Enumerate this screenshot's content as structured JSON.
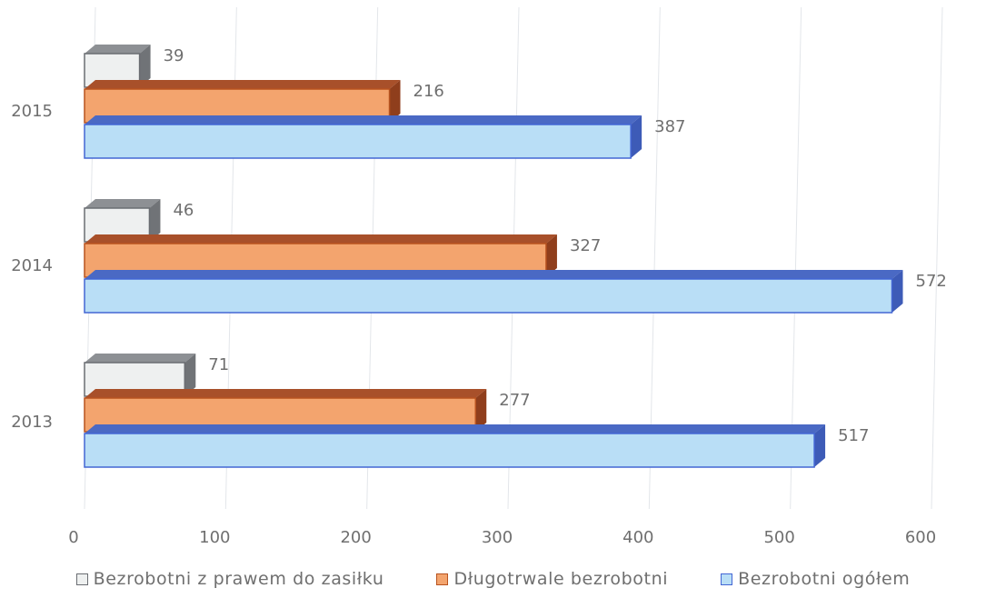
{
  "colors": {
    "series_fill": [
      "#eef0f0",
      "#f3a46e",
      "#b9def6"
    ],
    "series_top": [
      "#8d9094",
      "#a8502a",
      "#4a69c4"
    ],
    "series_side": [
      "#707377",
      "#8f3e1c",
      "#3d5bb7"
    ],
    "series_border": [
      "#6a6d72",
      "#b8531f",
      "#4366d4"
    ],
    "gridline": "#e3e6ea",
    "text": "#6f6f6f"
  },
  "chart_data": {
    "type": "bar",
    "orientation": "horizontal",
    "three_d": true,
    "categories": [
      "2015",
      "2014",
      "2013"
    ],
    "series": [
      {
        "name": "Bezrobotni z prawem do zasiłku",
        "values": [
          39,
          46,
          71
        ]
      },
      {
        "name": "Długotrwale bezrobotni",
        "values": [
          216,
          327,
          277
        ]
      },
      {
        "name": "Bezrobotni ogółem",
        "values": [
          387,
          572,
          517
        ]
      }
    ],
    "xlim": [
      0,
      600
    ],
    "x_ticks": [
      "0",
      "100",
      "200",
      "300",
      "400",
      "500",
      "600"
    ],
    "grid": true,
    "legend_position": "bottom",
    "data_labels": true,
    "xlabel": "",
    "ylabel": ""
  }
}
